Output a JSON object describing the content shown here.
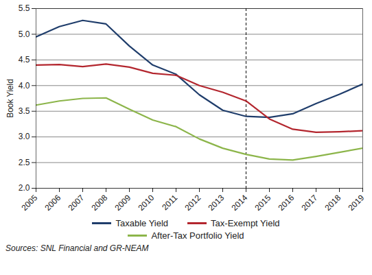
{
  "chart_data": {
    "type": "line",
    "y_label": "Book Yield",
    "x": [
      2005,
      2006,
      2007,
      2008,
      2009,
      2010,
      2011,
      2012,
      2013,
      2014,
      2015,
      2016,
      2017,
      2018,
      2019
    ],
    "series": [
      {
        "name": "Taxable Yield",
        "color": "#1f3d6b",
        "values": [
          4.95,
          5.15,
          5.27,
          5.2,
          4.77,
          4.4,
          4.22,
          3.82,
          3.52,
          3.4,
          3.38,
          3.45,
          3.65,
          3.83,
          4.03
        ]
      },
      {
        "name": "Tax-Exempt Yield",
        "color": "#b3262e",
        "values": [
          4.4,
          4.41,
          4.37,
          4.42,
          4.36,
          4.24,
          4.2,
          4.0,
          3.87,
          3.7,
          3.35,
          3.15,
          3.09,
          3.1,
          3.12
        ]
      },
      {
        "name": "After-Tax Portfolio Yield",
        "color": "#8cb54a",
        "values": [
          3.62,
          3.7,
          3.75,
          3.76,
          3.54,
          3.33,
          3.2,
          2.96,
          2.78,
          2.66,
          2.57,
          2.55,
          2.62,
          2.7,
          2.78
        ]
      }
    ],
    "xlim": [
      2005,
      2019
    ],
    "xticks": [
      2005,
      2006,
      2007,
      2008,
      2009,
      2010,
      2011,
      2012,
      2013,
      2014,
      2015,
      2016,
      2017,
      2018,
      2019
    ],
    "ylim": [
      2.0,
      5.5
    ],
    "yticks": [
      {
        "value": 2,
        "label": "2.0"
      },
      2.5,
      {
        "value": 3,
        "label": "3.0"
      },
      3.5,
      {
        "value": 4,
        "label": "4.0"
      },
      4.5,
      {
        "value": 5,
        "label": "5.0"
      },
      5.5
    ],
    "reference_line_x": 2014,
    "grid": true,
    "legend": "bottom",
    "caption": "Sources: SNL Financial and GR-NEAM"
  }
}
